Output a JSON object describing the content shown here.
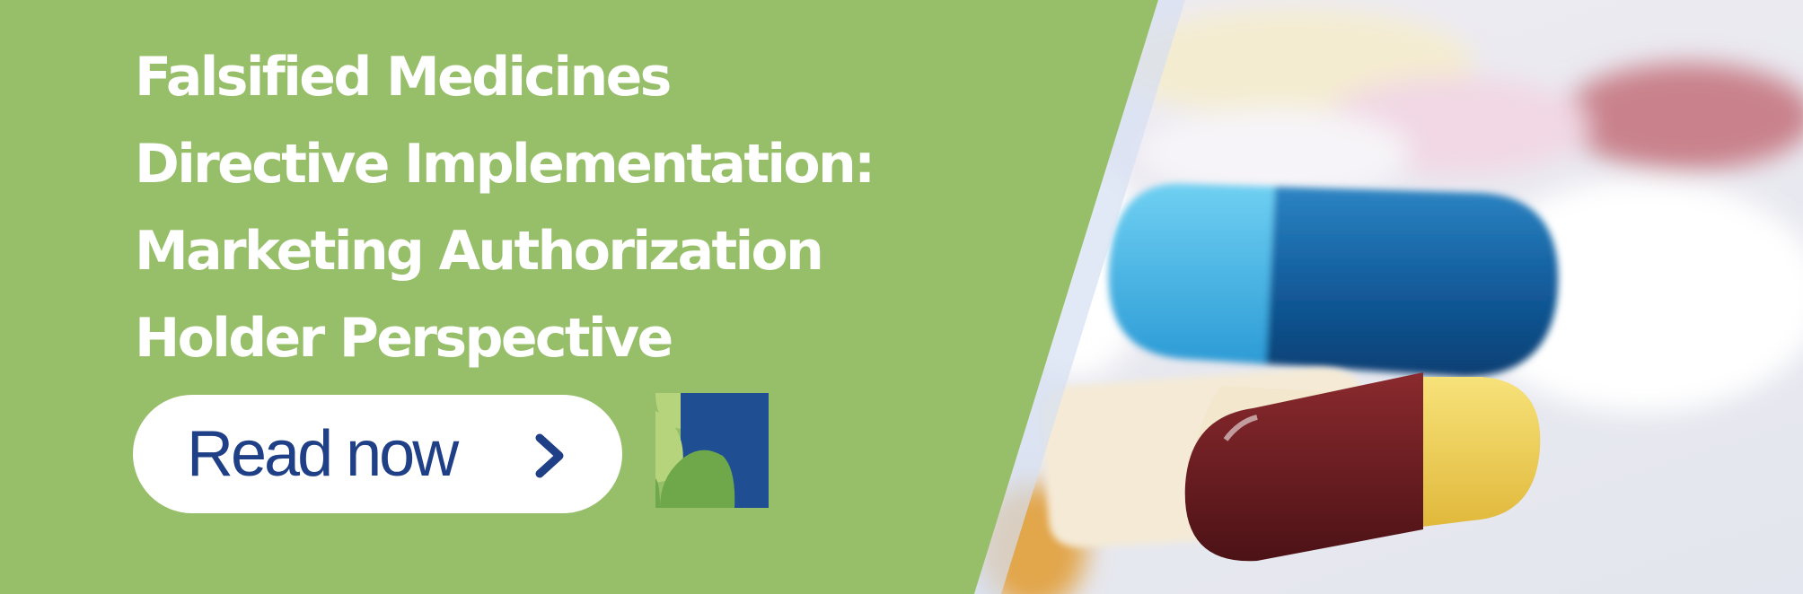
{
  "banner": {
    "title_lines": [
      "Falsified Medicines",
      "Directive Implementation:",
      "Marketing Authorization",
      "Holder Perspective"
    ],
    "cta_label": "Read now",
    "cta_icon": "chevron-right-icon",
    "logo_icon": "company-logo-icon",
    "photo_subject": "capsules-and-pills-photo"
  },
  "colors": {
    "panel_green": "#97bf69",
    "title_text": "#ffffff",
    "button_bg": "#ffffff",
    "button_text": "#1f3f86",
    "logo_blue": "#1f4f92",
    "logo_green": "#6fa84b",
    "logo_light_green": "#b6d47c"
  }
}
